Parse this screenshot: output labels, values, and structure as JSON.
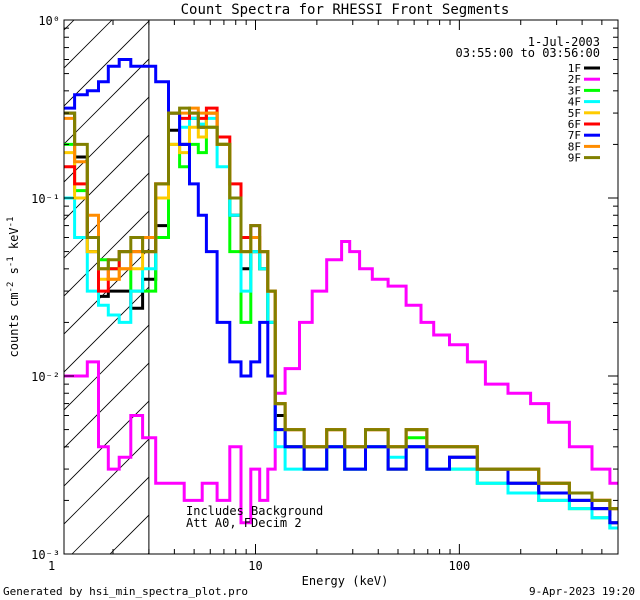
{
  "chart_data": {
    "type": "line",
    "title": "Count Spectra for RHESSI Front Segments",
    "xlabel": "Energy (keV)",
    "ylabel": "counts cm^-2 s^-1 keV^-1",
    "xscale": "log",
    "yscale": "log",
    "xlim": [
      1.15,
      600
    ],
    "ylim": [
      0.001,
      1.0
    ],
    "x_tick_labels": [
      {
        "value": 1,
        "label": "1"
      },
      {
        "value": 10,
        "label": "10"
      },
      {
        "value": 100,
        "label": "100"
      }
    ],
    "y_tick_labels": [
      {
        "value": 1.0,
        "label": "10⁰"
      },
      {
        "value": 0.1,
        "label": "10⁻¹"
      },
      {
        "value": 0.01,
        "label": "10⁻²"
      },
      {
        "value": 0.001,
        "label": "10⁻³"
      }
    ],
    "date": "1-Jul-2003",
    "time_range": "03:55:00 to 03:56:00",
    "annotations": [
      "Includes Background",
      "Att A0, FDecim 2"
    ],
    "footer_left": "Generated by hsi_min_spectra_plot.pro",
    "footer_right": "9-Apr-2023 19:20",
    "shaded_region_x": [
      1.15,
      3.0
    ],
    "legend_position": "top-right",
    "series": [
      {
        "name": "1F",
        "color": "#000000",
        "x": [
          1.2,
          1.4,
          1.6,
          1.8,
          2.0,
          2.3,
          2.6,
          3.0,
          3.5,
          4.0,
          4.5,
          5.0,
          5.5,
          6.0,
          7.0,
          8.0,
          9.0,
          10,
          11,
          12,
          13,
          15,
          20,
          25,
          30,
          40,
          50,
          60,
          80,
          100,
          150,
          200,
          300,
          400,
          500,
          600
        ],
        "y": [
          0.3,
          0.17,
          0.05,
          0.028,
          0.03,
          0.03,
          0.024,
          0.035,
          0.07,
          0.24,
          0.2,
          0.28,
          0.25,
          0.3,
          0.2,
          0.08,
          0.04,
          0.05,
          0.04,
          0.02,
          0.006,
          0.004,
          0.003,
          0.004,
          0.003,
          0.004,
          0.003,
          0.004,
          0.003,
          0.0035,
          0.003,
          0.0025,
          0.0022,
          0.002,
          0.0018,
          0.0015
        ]
      },
      {
        "name": "2F",
        "color": "#ff00ff",
        "x": [
          1.2,
          1.4,
          1.6,
          1.8,
          2.0,
          2.3,
          2.6,
          3.0,
          3.5,
          4.0,
          5.0,
          6.0,
          7.0,
          8.0,
          9.0,
          10,
          11,
          12,
          13,
          15,
          18,
          20,
          25,
          28,
          30,
          35,
          40,
          50,
          60,
          70,
          80,
          100,
          120,
          150,
          200,
          250,
          300,
          400,
          500,
          600
        ],
        "y": [
          0.01,
          0.01,
          0.012,
          0.004,
          0.003,
          0.0035,
          0.006,
          0.0045,
          0.0025,
          0.0025,
          0.002,
          0.0025,
          0.002,
          0.004,
          0.0015,
          0.003,
          0.002,
          0.003,
          0.008,
          0.011,
          0.02,
          0.03,
          0.045,
          0.057,
          0.05,
          0.04,
          0.035,
          0.032,
          0.025,
          0.02,
          0.017,
          0.015,
          0.012,
          0.009,
          0.008,
          0.007,
          0.0055,
          0.004,
          0.003,
          0.0025
        ]
      },
      {
        "name": "3F",
        "color": "#00ff00",
        "x": [
          1.2,
          1.4,
          1.6,
          1.8,
          2.0,
          2.3,
          2.6,
          3.0,
          3.5,
          4.0,
          4.5,
          5.0,
          5.5,
          6.0,
          7.0,
          8.0,
          9.0,
          10,
          11,
          12,
          13,
          15,
          20,
          25,
          30,
          40,
          50,
          60,
          80,
          100,
          150,
          200,
          300,
          400,
          500,
          600
        ],
        "y": [
          0.2,
          0.11,
          0.06,
          0.045,
          0.04,
          0.05,
          0.03,
          0.03,
          0.06,
          0.2,
          0.15,
          0.2,
          0.18,
          0.25,
          0.2,
          0.05,
          0.02,
          0.05,
          0.04,
          0.02,
          0.005,
          0.004,
          0.003,
          0.004,
          0.003,
          0.004,
          0.003,
          0.0045,
          0.003,
          0.003,
          0.0025,
          0.0022,
          0.002,
          0.0018,
          0.0016,
          0.0014
        ]
      },
      {
        "name": "4F",
        "color": "#00ffff",
        "x": [
          1.2,
          1.4,
          1.6,
          1.8,
          2.0,
          2.3,
          2.6,
          3.0,
          3.5,
          4.0,
          4.5,
          5.0,
          5.5,
          6.0,
          7.0,
          8.0,
          9.0,
          10,
          11,
          12,
          13,
          15,
          20,
          25,
          30,
          40,
          50,
          60,
          80,
          100,
          150,
          200,
          300,
          400,
          500,
          600
        ],
        "y": [
          0.1,
          0.06,
          0.03,
          0.025,
          0.022,
          0.02,
          0.03,
          0.04,
          0.1,
          0.3,
          0.25,
          0.28,
          0.26,
          0.28,
          0.15,
          0.08,
          0.03,
          0.05,
          0.04,
          0.02,
          0.004,
          0.003,
          0.003,
          0.004,
          0.003,
          0.004,
          0.0035,
          0.004,
          0.003,
          0.003,
          0.0025,
          0.0022,
          0.002,
          0.0018,
          0.0016,
          0.0014
        ]
      },
      {
        "name": "5F",
        "color": "#ffcc00",
        "x": [
          1.2,
          1.4,
          1.6,
          1.8,
          2.0,
          2.3,
          2.6,
          3.0,
          3.5,
          4.0,
          4.5,
          5.0,
          5.5,
          6.0,
          7.0,
          8.0,
          9.0,
          10,
          11,
          12,
          13,
          15,
          20,
          25,
          30,
          40,
          50,
          60,
          80,
          100,
          150,
          200,
          300,
          400,
          500,
          600
        ],
        "y": [
          0.18,
          0.1,
          0.05,
          0.035,
          0.035,
          0.04,
          0.04,
          0.05,
          0.1,
          0.2,
          0.18,
          0.25,
          0.22,
          0.3,
          0.2,
          0.1,
          0.05,
          0.06,
          0.05,
          0.03,
          0.007,
          0.005,
          0.004,
          0.005,
          0.004,
          0.005,
          0.004,
          0.005,
          0.004,
          0.004,
          0.003,
          0.003,
          0.0025,
          0.0022,
          0.002,
          0.0018
        ]
      },
      {
        "name": "6F",
        "color": "#ff0000",
        "x": [
          1.2,
          1.4,
          1.6,
          1.8,
          2.0,
          2.3,
          2.6,
          3.0,
          3.5,
          4.0,
          4.5,
          5.0,
          5.5,
          6.0,
          7.0,
          8.0,
          9.0,
          10,
          11,
          12,
          13,
          15,
          20,
          25,
          30,
          40,
          50,
          60,
          80,
          100,
          150,
          200,
          300,
          400,
          500,
          600
        ],
        "y": [
          0.15,
          0.12,
          0.06,
          0.03,
          0.04,
          0.05,
          0.05,
          0.05,
          0.12,
          0.3,
          0.28,
          0.3,
          0.28,
          0.32,
          0.22,
          0.12,
          0.06,
          0.07,
          0.05,
          0.03,
          0.007,
          0.005,
          0.004,
          0.005,
          0.004,
          0.005,
          0.004,
          0.005,
          0.004,
          0.004,
          0.003,
          0.003,
          0.0025,
          0.0022,
          0.002,
          0.0018
        ]
      },
      {
        "name": "7F",
        "color": "#0000ff",
        "x": [
          1.2,
          1.4,
          1.6,
          1.8,
          2.0,
          2.3,
          2.6,
          3.0,
          3.5,
          4.0,
          4.5,
          5.0,
          5.5,
          6.0,
          7.0,
          8.0,
          9.0,
          10,
          11,
          12,
          13,
          15,
          20,
          25,
          30,
          40,
          50,
          60,
          80,
          100,
          150,
          200,
          300,
          400,
          500,
          600
        ],
        "y": [
          0.32,
          0.38,
          0.4,
          0.45,
          0.55,
          0.6,
          0.55,
          0.55,
          0.45,
          0.3,
          0.2,
          0.12,
          0.08,
          0.05,
          0.02,
          0.012,
          0.01,
          0.012,
          0.02,
          0.01,
          0.005,
          0.004,
          0.003,
          0.004,
          0.003,
          0.004,
          0.003,
          0.004,
          0.003,
          0.0035,
          0.003,
          0.0025,
          0.0022,
          0.002,
          0.0018,
          0.0015
        ]
      },
      {
        "name": "8F",
        "color": "#ff8c00",
        "x": [
          1.2,
          1.4,
          1.6,
          1.8,
          2.0,
          2.3,
          2.6,
          3.0,
          3.5,
          4.0,
          4.5,
          5.0,
          5.5,
          6.0,
          7.0,
          8.0,
          9.0,
          10,
          11,
          12,
          13,
          15,
          20,
          25,
          30,
          40,
          50,
          60,
          80,
          100,
          150,
          200,
          300,
          400,
          500,
          600
        ],
        "y": [
          0.28,
          0.16,
          0.08,
          0.04,
          0.035,
          0.04,
          0.05,
          0.06,
          0.12,
          0.3,
          0.3,
          0.32,
          0.3,
          0.3,
          0.2,
          0.1,
          0.05,
          0.06,
          0.05,
          0.03,
          0.007,
          0.005,
          0.004,
          0.005,
          0.004,
          0.005,
          0.004,
          0.005,
          0.004,
          0.004,
          0.003,
          0.003,
          0.0025,
          0.0022,
          0.002,
          0.0018
        ]
      },
      {
        "name": "9F",
        "color": "#808000",
        "x": [
          1.2,
          1.4,
          1.6,
          1.8,
          2.0,
          2.3,
          2.6,
          3.0,
          3.5,
          4.0,
          4.5,
          5.0,
          5.5,
          6.0,
          7.0,
          8.0,
          9.0,
          10,
          11,
          12,
          13,
          15,
          20,
          25,
          30,
          40,
          50,
          60,
          80,
          100,
          150,
          200,
          300,
          400,
          500,
          600
        ],
        "y": [
          0.3,
          0.2,
          0.06,
          0.04,
          0.045,
          0.05,
          0.06,
          0.05,
          0.12,
          0.3,
          0.32,
          0.3,
          0.25,
          0.25,
          0.2,
          0.1,
          0.05,
          0.07,
          0.05,
          0.03,
          0.007,
          0.005,
          0.004,
          0.005,
          0.004,
          0.005,
          0.004,
          0.005,
          0.004,
          0.004,
          0.003,
          0.003,
          0.0025,
          0.0022,
          0.002,
          0.0018
        ]
      }
    ]
  }
}
